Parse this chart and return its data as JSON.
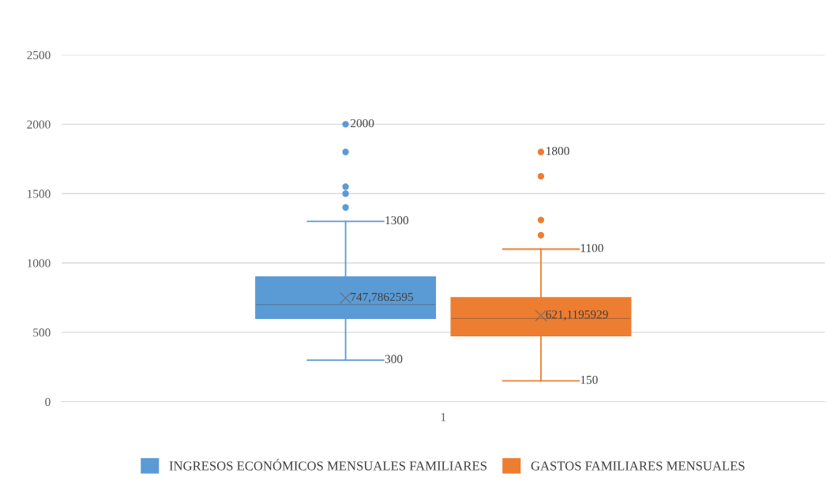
{
  "chart_data": {
    "type": "box",
    "categories": [
      "1"
    ],
    "series": [
      {
        "name": "INGRESOS ECONÓMICOS MENSUALES FAMILIARES",
        "color": "#5b9bd5",
        "boxes": [
          {
            "low": 300,
            "q1": 600,
            "median": 700,
            "q3": 900,
            "high": 1300,
            "mean": 747.7862595,
            "outliers": [
              1400,
              1500,
              1550,
              1800,
              2000
            ]
          }
        ]
      },
      {
        "name": "GASTOS FAMILIARES MENSUALES",
        "color": "#ed7d31",
        "boxes": [
          {
            "low": 150,
            "q1": 475,
            "median": 600,
            "q3": 750,
            "high": 1100,
            "mean": 621.1195929,
            "outliers": [
              1200,
              1310,
              1625,
              1800
            ]
          }
        ]
      }
    ],
    "annotations": [
      "2000",
      "1300",
      "747,7862595",
      "300",
      "1800",
      "1100",
      "621,1195929",
      "150"
    ],
    "ylim": [
      0,
      2500
    ],
    "yticks": [
      0,
      500,
      1000,
      1500,
      2000,
      2500
    ],
    "grid": "y",
    "legend": "bottom",
    "marker": "circle"
  }
}
